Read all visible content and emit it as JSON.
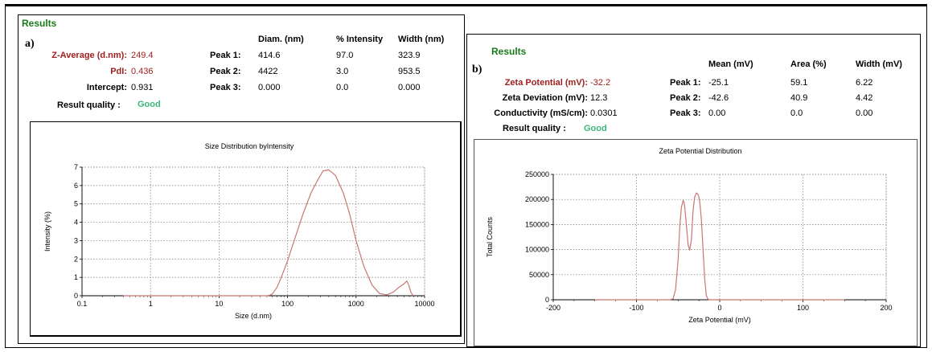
{
  "panel_a": {
    "results_title": "Results",
    "letter": "a)",
    "headers": [
      "Diam. (nm)",
      "% Intensity",
      "Width (nm)"
    ],
    "z_average_label": "Z-Average (d.nm):",
    "z_average_value": "249.4",
    "pdi_label": "PdI:",
    "pdi_value": "0.436",
    "intercept_label": "Intercept:",
    "intercept_value": "0.931",
    "result_quality_label": "Result quality :",
    "result_quality_value": "Good",
    "peaks": [
      {
        "label": "Peak 1:",
        "diam": "414.6",
        "intensity": "97.0",
        "width": "323.9"
      },
      {
        "label": "Peak 2:",
        "diam": "4422",
        "intensity": "3.0",
        "width": "953.5"
      },
      {
        "label": "Peak 3:",
        "diam": "0.000",
        "intensity": "0.0",
        "width": "0.000"
      }
    ]
  },
  "panel_b": {
    "results_title": "Results",
    "letter": "b)",
    "headers": [
      "Mean (mV)",
      "Area (%)",
      "Width (mV)"
    ],
    "zeta_potential_label": "Zeta Potential (mV):",
    "zeta_potential_value": "-32.2",
    "zeta_deviation_label": "Zeta Deviation (mV):",
    "zeta_deviation_value": "12.3",
    "conductivity_label": "Conductivity (mS/cm):",
    "conductivity_value": "0.0301",
    "result_quality_label": "Result quality :",
    "result_quality_value": "Good",
    "peaks": [
      {
        "label": "Peak 1:",
        "mean": "-25.1",
        "area": "59.1",
        "width": "6.22"
      },
      {
        "label": "Peak 2:",
        "mean": "-42.6",
        "area": "40.9",
        "width": "4.42"
      },
      {
        "label": "Peak 3:",
        "mean": "0.00",
        "area": "0.0",
        "width": "0.00"
      }
    ]
  },
  "chart_data": [
    {
      "type": "line",
      "title": "Size Distribution byIntensity",
      "xlabel": "Size (d.nm)",
      "ylabel": "Intensity (%)",
      "xscale": "log",
      "xlim": [
        0.1,
        10000
      ],
      "ylim": [
        0,
        7
      ],
      "xticks": [
        "0.1",
        "1",
        "10",
        "100",
        "1000",
        "10000"
      ],
      "yticks": [
        "0",
        "1",
        "2",
        "3",
        "4",
        "5",
        "6",
        "7"
      ],
      "grid": true,
      "line_color": "#c8776f",
      "series": [
        {
          "x": [
            0.4,
            1,
            10,
            40,
            50,
            55,
            60,
            70,
            80,
            100,
            130,
            170,
            220,
            280,
            330,
            400,
            500,
            650,
            800,
            1000,
            1300,
            1700,
            2200,
            2800,
            3500,
            4200,
            5000,
            5500,
            5900,
            6300,
            6800
          ],
          "y": [
            0,
            0,
            0,
            0,
            0,
            0.03,
            0.1,
            0.45,
            0.95,
            1.9,
            3.2,
            4.5,
            5.6,
            6.35,
            6.8,
            6.85,
            6.55,
            5.6,
            4.5,
            3.0,
            1.6,
            0.6,
            0.12,
            0.05,
            0.2,
            0.45,
            0.65,
            0.8,
            0.55,
            0.2,
            0
          ]
        }
      ]
    },
    {
      "type": "line",
      "title": "Zeta Potential Distribution",
      "xlabel": "Zeta Potential (mV)",
      "ylabel": "Total Counts",
      "xlim": [
        -200,
        200
      ],
      "ylim": [
        0,
        250000
      ],
      "xticks": [
        "-200",
        "-100",
        "0",
        "100",
        "200"
      ],
      "yticks": [
        "0",
        "50000",
        "100000",
        "150000",
        "200000",
        "250000"
      ],
      "grid": true,
      "line_color": "#c8776f",
      "series": [
        {
          "x": [
            -150,
            -60,
            -56,
            -53,
            -50,
            -48,
            -46,
            -44,
            -43,
            -42,
            -40,
            -38,
            -36,
            -34,
            -32,
            -30,
            -28,
            -26,
            -25,
            -24,
            -22,
            -20,
            -18,
            -16,
            -14,
            -12,
            150
          ],
          "y": [
            0,
            0,
            2000,
            20000,
            80000,
            145000,
            185000,
            198000,
            195000,
            185000,
            148000,
            110000,
            99000,
            120000,
            178000,
            205000,
            213000,
            210000,
            205000,
            195000,
            160000,
            100000,
            40000,
            8000,
            1000,
            0,
            0
          ]
        }
      ]
    }
  ]
}
